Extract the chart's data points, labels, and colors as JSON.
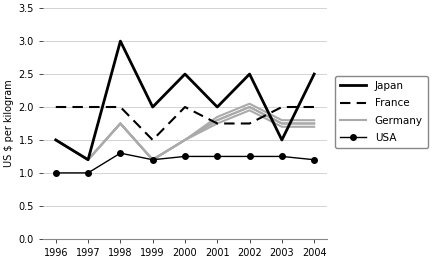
{
  "years": [
    1996,
    1997,
    1998,
    1999,
    2000,
    2001,
    2002,
    2003,
    2004
  ],
  "japan": [
    1.5,
    1.2,
    3.0,
    2.0,
    2.5,
    2.0,
    2.5,
    1.5,
    2.5
  ],
  "france": [
    2.0,
    2.0,
    2.0,
    1.5,
    2.0,
    1.75,
    1.75,
    2.0,
    2.0
  ],
  "germany": [
    1.5,
    1.2,
    1.75,
    1.2,
    1.5,
    1.8,
    2.0,
    1.75,
    1.75
  ],
  "germany2": [
    1.5,
    1.2,
    1.75,
    1.2,
    1.5,
    1.85,
    2.05,
    1.8,
    1.8
  ],
  "germany3": [
    1.5,
    1.2,
    1.75,
    1.2,
    1.5,
    1.75,
    1.95,
    1.7,
    1.7
  ],
  "usa": [
    1.0,
    1.0,
    1.3,
    1.2,
    1.25,
    1.25,
    1.25,
    1.25,
    1.2
  ],
  "ylabel": "US $ per kilogram",
  "ylim": [
    0,
    3.5
  ],
  "yticks": [
    0,
    0.5,
    1.0,
    1.5,
    2.0,
    2.5,
    3.0,
    3.5
  ],
  "legend_labels": [
    "Japan",
    "France",
    "Germany",
    "USA"
  ],
  "japan_color": "#000000",
  "france_color": "#000000",
  "germany_color": "#aaaaaa",
  "usa_color": "#000000",
  "bg_color": "#ffffff",
  "figwidth": 4.42,
  "figheight": 2.62,
  "dpi": 100
}
